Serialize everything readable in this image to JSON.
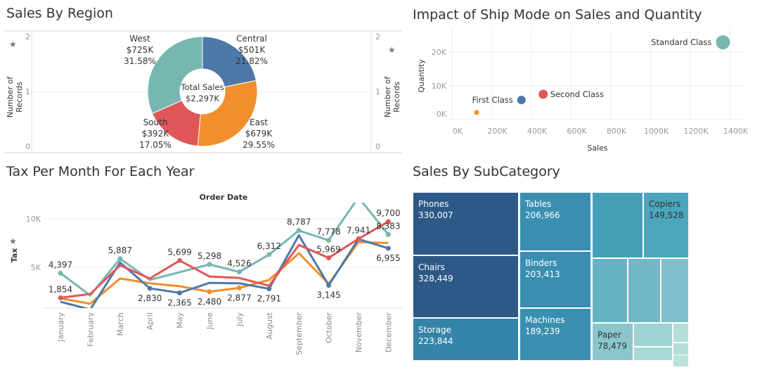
{
  "region": {
    "title": "Sales By Region",
    "axis_label": "Number of Records",
    "axis_ticks": [
      "2",
      "1",
      "0"
    ],
    "center_label": "Total Sales",
    "center_value": "$2,297K",
    "slices": [
      {
        "name": "Central",
        "sales": "$501K",
        "pct": "21.82%",
        "share": 21.82,
        "color": "#4e79a7"
      },
      {
        "name": "East",
        "sales": "$679K",
        "pct": "29.55%",
        "share": 29.55,
        "color": "#f28e2b"
      },
      {
        "name": "South",
        "sales": "$392K",
        "pct": "17.05%",
        "share": 17.05,
        "color": "#e15759"
      },
      {
        "name": "West",
        "sales": "$725K",
        "pct": "31.58%",
        "share": 31.58,
        "color": "#76b7b2"
      }
    ]
  },
  "shipmode": {
    "title": "Impact of Ship Mode on Sales and Quantity",
    "chart_data": {
      "type": "scatter",
      "xlabel": "Sales",
      "ylabel": "Quantity",
      "xlim": [
        0,
        1400000
      ],
      "ylim": [
        0,
        25000
      ],
      "xticks": [
        "0K",
        "200K",
        "400K",
        "600K",
        "800K",
        "1000K",
        "1200K",
        "1400K"
      ],
      "yticks": [
        "0K",
        "10K",
        "20K"
      ],
      "points": [
        {
          "label": "Standard Class",
          "sales": 1366000,
          "quantity": 22900,
          "color": "#76b7b2"
        },
        {
          "label": "Second Class",
          "sales": 460000,
          "quantity": 7500,
          "color": "#e15759"
        },
        {
          "label": "First Class",
          "sales": 350000,
          "quantity": 5800,
          "color": "#4e79a7"
        },
        {
          "label": "",
          "sales": 124000,
          "quantity": 2100,
          "color": "#f28e2b"
        }
      ]
    }
  },
  "tax": {
    "title": "Tax Per Month For Each Year",
    "chart_data": {
      "type": "line",
      "title": "Order Date",
      "ylabel": "Tax",
      "yticks": [
        "5K",
        "10K"
      ],
      "ylim": [
        800,
        12000
      ],
      "categories": [
        "January",
        "February",
        "March",
        "April",
        "May",
        "June",
        "July",
        "August",
        "September",
        "October",
        "November",
        "December"
      ],
      "series": [
        {
          "color": "#76b7b2",
          "values": [
            4397,
            2100,
            5887,
            3700,
            4500,
            5298,
            4526,
            6312,
            8787,
            7778,
            12200,
            8383
          ],
          "labels": [
            "4,397",
            null,
            "5,887",
            null,
            null,
            "5,298",
            "4,526",
            "6,312",
            "8,787",
            "7,778",
            null,
            "8,383"
          ]
        },
        {
          "color": "#f28e2b",
          "values": [
            1800,
            1250,
            3850,
            3350,
            3050,
            2480,
            2877,
            3700,
            6450,
            3300,
            7600,
            7500
          ],
          "labels": [
            null,
            null,
            null,
            null,
            null,
            "2,480",
            "2,877",
            null,
            null,
            null,
            null,
            null
          ]
        },
        {
          "color": "#4e79a7",
          "values": [
            1450,
            650,
            5500,
            2830,
            2365,
            3400,
            3350,
            2791,
            8300,
            3145,
            7900,
            6955
          ],
          "labels": [
            null,
            null,
            null,
            "2,830",
            "2,365",
            null,
            null,
            "2,791",
            null,
            "3,145",
            null,
            "6,955"
          ]
        },
        {
          "color": "#e15759",
          "values": [
            1854,
            2250,
            5200,
            3850,
            5699,
            4050,
            3900,
            3100,
            7300,
            5969,
            7941,
            9700
          ],
          "labels": [
            "1,854",
            null,
            null,
            null,
            "5,699",
            null,
            null,
            null,
            null,
            "5,969",
            "7,941",
            "9,700"
          ]
        }
      ]
    }
  },
  "subcat": {
    "title": "Sales By SubCategory",
    "tiles": [
      {
        "name": "Phones",
        "value": "330,007",
        "color": "#2c5985"
      },
      {
        "name": "Chairs",
        "value": "328,449",
        "color": "#2c5985"
      },
      {
        "name": "Storage",
        "value": "223,844",
        "color": "#3583a8"
      },
      {
        "name": "Tables",
        "value": "206,966",
        "color": "#3a8fb0"
      },
      {
        "name": "Binders",
        "value": "203,413",
        "color": "#3a8fb0"
      },
      {
        "name": "Machines",
        "value": "189,239",
        "color": "#3a8fb0"
      },
      {
        "name": "",
        "value": "",
        "color": "#44a0b7"
      },
      {
        "name": "Copiers",
        "value": "149,528",
        "color": "#4aa6bc"
      },
      {
        "name": "",
        "value": "",
        "color": "#66b3c3"
      },
      {
        "name": "",
        "value": "",
        "color": "#72b9c5"
      },
      {
        "name": "",
        "value": "",
        "color": "#7ec0c9"
      },
      {
        "name": "Paper",
        "value": "78,479",
        "color": "#8cc6cd"
      },
      {
        "name": "",
        "value": "",
        "color": "#9fd2d2"
      },
      {
        "name": "",
        "value": "",
        "color": "#a8d9d5"
      },
      {
        "name": "",
        "value": "",
        "color": "#b3dfd8"
      },
      {
        "name": "",
        "value": "",
        "color": "#b3dfd8"
      },
      {
        "name": "",
        "value": "",
        "color": "#b8e2da"
      }
    ]
  }
}
